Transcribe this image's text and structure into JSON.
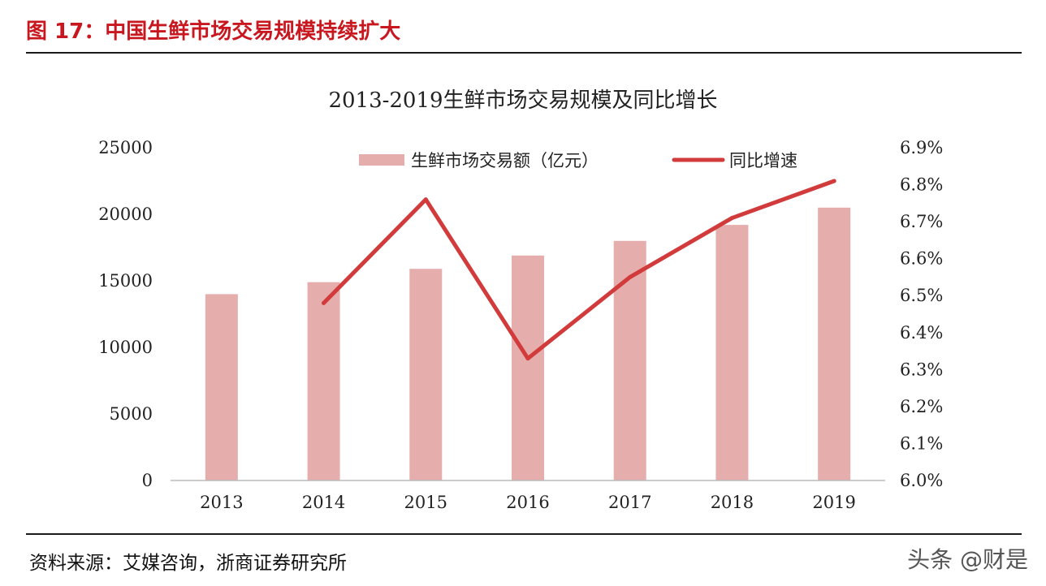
{
  "figure": {
    "title": "图 17：中国生鲜市场交易规模持续扩大",
    "source": "资料来源：艾媒咨询，浙商证券研究所",
    "watermark": "头条 @财是"
  },
  "colors": {
    "bar": "#e6adad",
    "line": "#d23b3b",
    "title_red": "#c8171e"
  },
  "chart_data": {
    "type": "bar",
    "title": "2013-2019生鲜市场交易规模及同比增长",
    "categories": [
      "2013",
      "2014",
      "2015",
      "2016",
      "2017",
      "2018",
      "2019"
    ],
    "series": [
      {
        "name": "生鲜市场交易额（亿元）",
        "type": "bar",
        "axis": "left",
        "values": [
          14000,
          14900,
          15900,
          16900,
          18000,
          19200,
          20500
        ]
      },
      {
        "name": "同比增速",
        "type": "line",
        "axis": "right",
        "values": [
          null,
          6.48,
          6.76,
          6.33,
          6.55,
          6.71,
          6.81
        ]
      }
    ],
    "y_left": {
      "min": 0,
      "max": 25000,
      "ticks": [
        "0",
        "5000",
        "10000",
        "15000",
        "20000",
        "25000"
      ]
    },
    "y_right": {
      "min": 6.0,
      "max": 6.9,
      "ticks": [
        "6.0%",
        "6.1%",
        "6.2%",
        "6.3%",
        "6.4%",
        "6.5%",
        "6.6%",
        "6.7%",
        "6.8%",
        "6.9%"
      ]
    },
    "legend_position": "top-center",
    "grid": false
  }
}
